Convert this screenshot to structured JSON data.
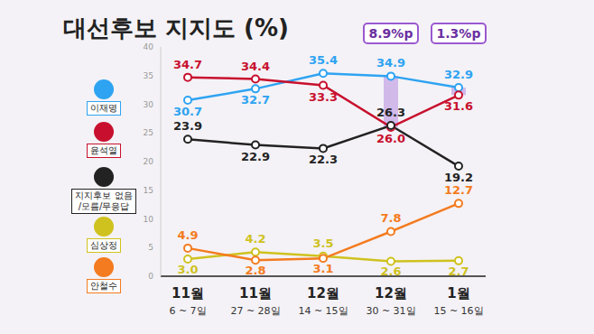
{
  "chart_data": {
    "type": "line",
    "title": "대선후보 지지도 (%)",
    "categories": [
      "11월\n6 ~ 7일",
      "11월\n27 ~ 28일",
      "12월\n14 ~ 15일",
      "12월\n30 ~ 31일",
      "1월\n15 ~ 16일"
    ],
    "ylim": [
      0,
      40
    ],
    "yticks": [
      0,
      5,
      10,
      15,
      20,
      25,
      30,
      35,
      40
    ],
    "grid": false,
    "data_labels": true,
    "marker": "circle",
    "series": [
      {
        "name": "이재명",
        "color": "#2ea3f2",
        "values": [
          30.7,
          32.7,
          35.4,
          34.9,
          32.9
        ],
        "value_labels": [
          "30.7",
          "32.7",
          "35.4",
          "34.9",
          "32.9"
        ]
      },
      {
        "name": "윤석열",
        "color": "#c8102e",
        "values": [
          34.7,
          34.4,
          33.3,
          26.0,
          31.6
        ],
        "value_labels": [
          "34.7",
          "34.4",
          "33.3",
          "26.0",
          "31.6"
        ]
      },
      {
        "name": "지지후보 없음\n/모름/무응답",
        "color": "#222222",
        "values": [
          23.9,
          22.9,
          22.3,
          26.3,
          19.2
        ],
        "value_labels": [
          "23.9",
          "22.9",
          "22.3",
          "26.3",
          "19.2"
        ]
      },
      {
        "name": "심상정",
        "color": "#cfc21f",
        "values": [
          3.0,
          4.2,
          3.5,
          2.6,
          2.7
        ],
        "value_labels": [
          "3.0",
          "4.2",
          "3.5",
          "2.6",
          "2.7"
        ]
      },
      {
        "name": "안철수",
        "color": "#f47b20",
        "values": [
          4.9,
          2.8,
          3.1,
          7.8,
          12.7
        ],
        "value_labels": [
          "4.9",
          "2.8",
          "3.1",
          "7.8",
          "12.7"
        ]
      }
    ],
    "annotations": [
      {
        "index": 3,
        "label": "8.9%p",
        "between": [
          "이재명",
          "윤석열"
        ]
      },
      {
        "index": 4,
        "label": "1.3%p",
        "between": [
          "이재명",
          "윤석열"
        ]
      }
    ]
  }
}
